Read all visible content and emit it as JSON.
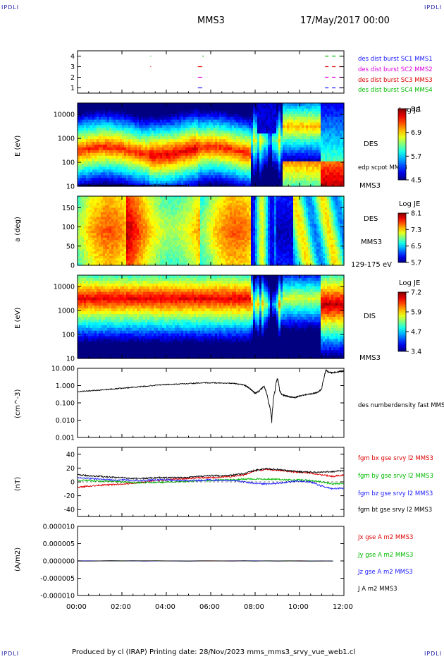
{
  "header": {
    "corner_tl": "IPDLI",
    "corner_tr": "IPDLI",
    "corner_bl": "IPDLI",
    "corner_br": "IPDLI",
    "spacecraft": "MMS3",
    "datetime": "17/May/2017 00:00"
  },
  "footer": {
    "text": "Produced by cl (IRAP)   Printing date: 28/Nov/2023   mms_mms3_srvy_vue_web1.cl"
  },
  "colors": {
    "mms1": "#1a1aff",
    "mms2": "#dd00dd",
    "mms3": "#dd0000",
    "mms4": "#00bb00",
    "black": "#000000"
  },
  "chart_data": [
    {
      "id": "burst",
      "type": "scatter",
      "ylabel": "",
      "ylim": [
        0.5,
        4.5
      ],
      "yticks": [
        "1",
        "2",
        "3",
        "4"
      ],
      "legend": [
        {
          "label": "des dist burst SC1 MMS1",
          "color": "#1a1aff"
        },
        {
          "label": "des dist burst SC2 MMS2",
          "color": "#dd00dd"
        },
        {
          "label": "des dist burst SC3 MMS3",
          "color": "#dd0000"
        },
        {
          "label": "des dist burst SC4 MMS4",
          "color": "#00bb00"
        }
      ],
      "intervals_hours": [
        {
          "sc": 1,
          "from": 5.42,
          "to": 5.62
        },
        {
          "sc": 2,
          "from": 5.42,
          "to": 5.62
        },
        {
          "sc": 3,
          "from": 5.42,
          "to": 5.62
        },
        {
          "sc": 4,
          "from": 5.62,
          "to": 5.68
        },
        {
          "sc": 3,
          "from": 3.28,
          "to": 3.31
        },
        {
          "sc": 4,
          "from": 3.28,
          "to": 3.31
        },
        {
          "sc": 1,
          "from": 11.15,
          "to": 11.95
        },
        {
          "sc": 2,
          "from": 11.15,
          "to": 11.95
        },
        {
          "sc": 3,
          "from": 11.15,
          "to": 11.95
        },
        {
          "sc": 4,
          "from": 11.15,
          "to": 11.95
        }
      ]
    },
    {
      "id": "des_energy",
      "type": "heatmap",
      "ylabel": "E (eV)",
      "yscale": "log",
      "ylim": [
        10,
        30000
      ],
      "yticks": [
        "10",
        "100",
        "1000",
        "10000"
      ],
      "species_label": "DES",
      "sc_label": "MMS3",
      "overlay_label": "edp scpot MMS3",
      "colorbar": {
        "title": "Log JE",
        "ticks": [
          "8.1",
          "6.9",
          "5.7",
          "4.5"
        ],
        "range": [
          4.5,
          8.1
        ]
      }
    },
    {
      "id": "des_pitch",
      "type": "heatmap",
      "ylabel": "a (deg)",
      "ylim": [
        0,
        180
      ],
      "yticks": [
        "0",
        "50",
        "100",
        "150"
      ],
      "species_label": "DES",
      "sc_label": "MMS3",
      "energy_band": "129-175 eV",
      "colorbar": {
        "title": "Log JE",
        "ticks": [
          "8.1",
          "7.3",
          "6.5",
          "5.7"
        ],
        "range": [
          5.7,
          8.1
        ]
      }
    },
    {
      "id": "dis_energy",
      "type": "heatmap",
      "ylabel": "E (eV)",
      "yscale": "log",
      "ylim": [
        10,
        30000
      ],
      "yticks": [
        "10",
        "100",
        "1000",
        "10000"
      ],
      "species_label": "DIS",
      "sc_label": "MMS3",
      "colorbar": {
        "title": "Log JE",
        "ticks": [
          "7.2",
          "5.9",
          "4.7",
          "3.4"
        ],
        "range": [
          3.4,
          7.2
        ]
      }
    },
    {
      "id": "density",
      "type": "line",
      "ylabel": "(cm^-3)",
      "yscale": "log",
      "ylim": [
        0.001,
        10
      ],
      "yticks": [
        "0.001",
        "0.010",
        "0.100",
        "1.000",
        "10.000"
      ],
      "series": [
        {
          "name": "des numberdensity fast MMS3",
          "color": "#000000",
          "x": [
            0,
            0.5,
            1,
            1.5,
            2,
            2.5,
            3,
            3.5,
            4,
            4.5,
            5,
            5.5,
            6,
            6.5,
            7,
            7.5,
            7.8,
            8.0,
            8.2,
            8.4,
            8.5,
            8.6,
            8.7,
            8.75,
            8.8,
            8.9,
            9.0,
            9.1,
            9.2,
            9.4,
            9.6,
            9.8,
            10.0,
            10.3,
            10.6,
            10.8,
            11.0,
            11.1,
            11.2,
            11.3,
            11.5,
            11.8,
            12.0
          ],
          "y": [
            0.45,
            0.5,
            0.55,
            0.62,
            0.7,
            0.8,
            0.9,
            1.05,
            1.15,
            1.2,
            1.3,
            1.4,
            1.45,
            1.4,
            1.35,
            1.1,
            0.6,
            0.35,
            0.5,
            0.9,
            0.4,
            0.1,
            0.03,
            0.007,
            0.06,
            0.5,
            2.5,
            0.5,
            0.3,
            0.25,
            0.22,
            0.2,
            0.25,
            0.3,
            0.35,
            0.4,
            0.6,
            2.5,
            8.0,
            6.0,
            5.5,
            6.5,
            7.0
          ]
        }
      ]
    },
    {
      "id": "bfield",
      "type": "line",
      "ylabel": "(nT)",
      "ylim": [
        -50,
        50
      ],
      "yticks": [
        "-40",
        "-20",
        "0",
        "20",
        "40"
      ],
      "series": [
        {
          "name": "fgm bx gse srvy l2 MMS3",
          "color": "#dd0000",
          "x": [
            0,
            0.5,
            1,
            1.5,
            2,
            2.5,
            3,
            3.5,
            4,
            4.5,
            5,
            5.5,
            6,
            6.5,
            7,
            7.5,
            8,
            8.5,
            9,
            9.5,
            10,
            10.5,
            11,
            11.5,
            12
          ],
          "y": [
            -8,
            -6,
            -5,
            -4,
            -3,
            -2,
            0,
            2,
            3,
            4,
            5,
            6,
            6,
            7,
            8,
            10,
            16,
            18,
            17,
            15,
            14,
            13,
            10,
            8,
            10
          ]
        },
        {
          "name": "fgm by gse srvy l2 MMS3",
          "color": "#00bb00",
          "x": [
            0,
            0.5,
            1,
            1.5,
            2,
            2.5,
            3,
            3.5,
            4,
            4.5,
            5,
            5.5,
            6,
            6.5,
            7,
            7.5,
            8,
            8.5,
            9,
            9.5,
            10,
            10.5,
            11,
            11.5,
            12
          ],
          "y": [
            2,
            2,
            1,
            1,
            0,
            -1,
            -1,
            -1,
            0,
            0,
            1,
            2,
            2,
            3,
            3,
            4,
            4,
            4,
            4,
            3,
            3,
            2,
            0,
            -3,
            -2
          ]
        },
        {
          "name": "fgm bz gse srvy l2 MMS3",
          "color": "#1a1aff",
          "x": [
            0,
            0.5,
            1,
            1.5,
            2,
            2.5,
            3,
            3.5,
            4,
            4.5,
            5,
            5.5,
            6,
            6.5,
            7,
            7.5,
            8,
            8.5,
            9,
            9.5,
            10,
            10.5,
            11,
            11.5,
            12
          ],
          "y": [
            6,
            5,
            4,
            3,
            3,
            2,
            2,
            3,
            3,
            2,
            2,
            2,
            3,
            2,
            2,
            0,
            -2,
            -3,
            -2,
            0,
            1,
            0,
            -6,
            -10,
            -9
          ]
        },
        {
          "name": "fgm bt gse srvy l2 MMS3",
          "color": "#000000",
          "x": [
            0,
            0.5,
            1,
            1.5,
            2,
            2.5,
            3,
            3.5,
            4,
            4.5,
            5,
            5.5,
            6,
            6.5,
            7,
            7.5,
            8,
            8.5,
            9,
            9.5,
            10,
            10.5,
            11,
            11.5,
            12
          ],
          "y": [
            10,
            9,
            8,
            7,
            6,
            5,
            5,
            6,
            6,
            6,
            7,
            8,
            9,
            9,
            10,
            12,
            17,
            19,
            18,
            16,
            15,
            14,
            14,
            15,
            16
          ]
        }
      ]
    },
    {
      "id": "current",
      "type": "line",
      "ylabel": "(A/m2)",
      "ylim": [
        -1e-05,
        1e-05
      ],
      "yticks": [
        "-0.000010",
        "-0.000005",
        "0.000000",
        "0.000005",
        "0.000010"
      ],
      "series": [
        {
          "name": "Jx gse A m2 MMS3",
          "color": "#dd0000",
          "x": [
            0,
            12
          ],
          "y": [
            0,
            0
          ]
        },
        {
          "name": "Jy gse A m2 MMS3",
          "color": "#00bb00",
          "x": [
            0,
            12
          ],
          "y": [
            0,
            0
          ]
        },
        {
          "name": "Jz gse A m2 MMS3",
          "color": "#1a1aff",
          "x": [
            0,
            12
          ],
          "y": [
            0,
            0
          ]
        },
        {
          "name": "J A m2 MMS3",
          "color": "#000000",
          "x": [
            0,
            12
          ],
          "y": [
            0,
            0
          ]
        }
      ]
    }
  ],
  "xaxis": {
    "range_hours": [
      0,
      12
    ],
    "ticks": [
      "00:00",
      "02:00",
      "04:00",
      "06:00",
      "08:00",
      "10:00",
      "12:00"
    ]
  }
}
